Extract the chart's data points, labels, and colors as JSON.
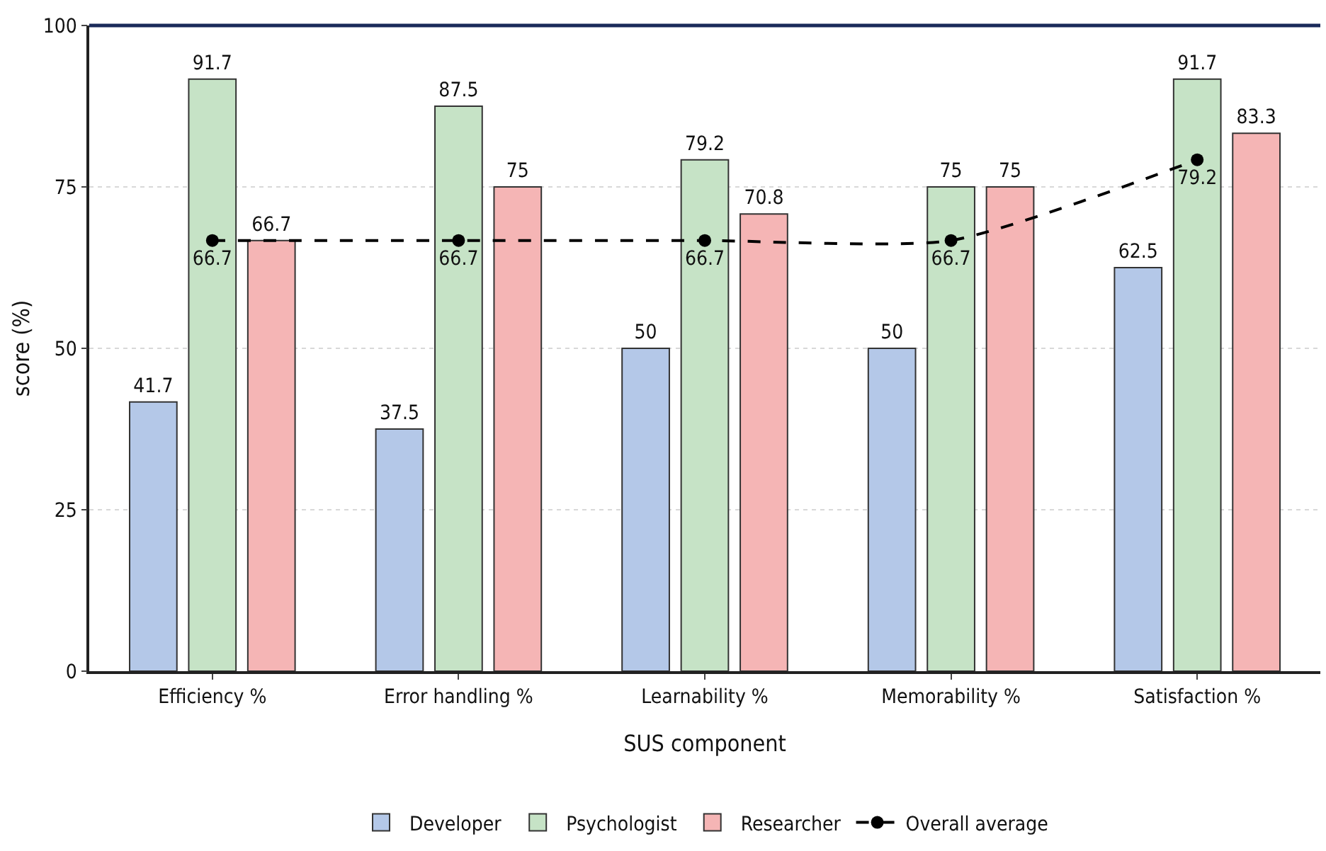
{
  "chart_data": {
    "type": "bar",
    "xlabel": "SUS component",
    "ylabel": "score (%)",
    "categories": [
      "Efficiency %",
      "Error handling %",
      "Learnability %",
      "Memorability %",
      "Satisfaction %"
    ],
    "series": [
      {
        "name": "Developer",
        "color": "#b4c8e8",
        "values": [
          41.7,
          37.5,
          50,
          50,
          62.5
        ]
      },
      {
        "name": "Psychologist",
        "color": "#c6e3c6",
        "values": [
          91.7,
          87.5,
          79.2,
          75,
          91.7
        ]
      },
      {
        "name": "Researcher",
        "color": "#f5b5b5",
        "values": [
          66.7,
          75,
          70.8,
          75,
          83.3
        ]
      },
      {
        "name": "Overall average",
        "type": "line",
        "color": "#000000",
        "marker": "circle",
        "line_style": "dashed",
        "values": [
          66.7,
          66.7,
          66.7,
          66.7,
          79.2
        ]
      }
    ],
    "ylim": [
      0,
      100
    ],
    "yticks": [
      0,
      25,
      50,
      75,
      100
    ],
    "grid": "y",
    "legend": "bottom",
    "data_labels": true
  }
}
